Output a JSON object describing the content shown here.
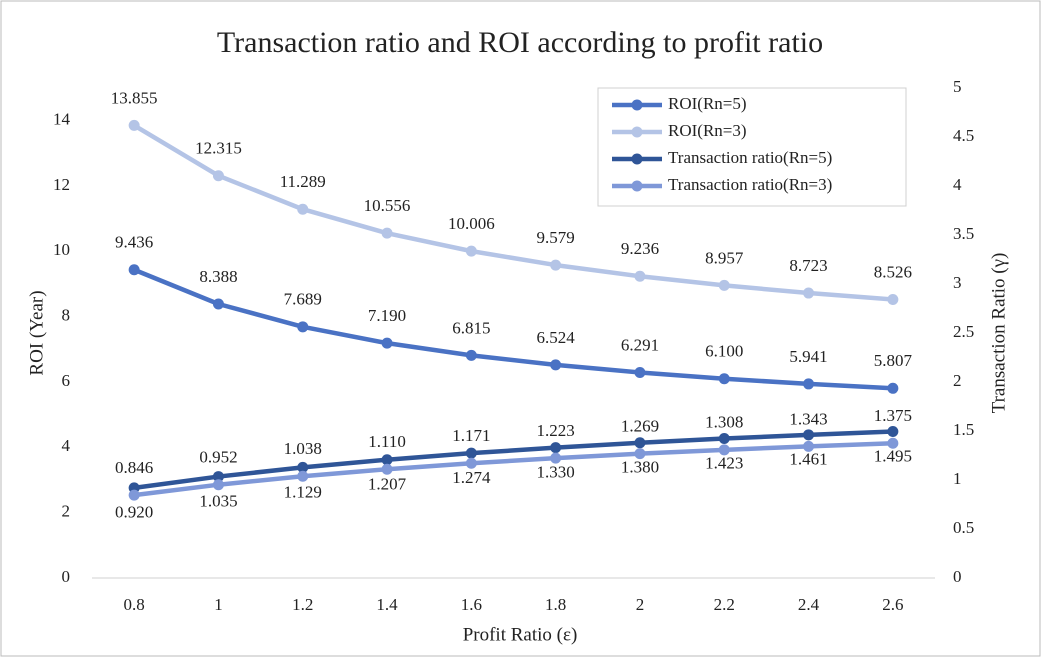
{
  "chart_data": {
    "type": "line",
    "title": "Transaction ratio and ROI according to profit ratio",
    "x_label": "Profit Ratio (ε)",
    "y_label": "ROI (Year)",
    "y2_label": "Transaction Ratio (γ)",
    "categories": [
      "0.8",
      "1",
      "1.2",
      "1.4",
      "1.6",
      "1.8",
      "2",
      "2.2",
      "2.4",
      "2.6"
    ],
    "ylim": [
      0,
      15
    ],
    "yticks": [
      0,
      2,
      4,
      6,
      8,
      10,
      12,
      14
    ],
    "y2lim": [
      0,
      5
    ],
    "y2ticks": [
      0,
      0.5,
      1,
      1.5,
      2,
      2.5,
      3,
      3.5,
      4,
      4.5,
      5
    ],
    "grid": false,
    "legend": "top-right",
    "series": [
      {
        "name": "ROI(Rn=5)",
        "color": "#4a72c4",
        "axis": "y",
        "values": [
          9.436,
          8.388,
          7.689,
          7.19,
          6.815,
          6.524,
          6.291,
          6.1,
          5.941,
          5.807
        ],
        "value_labels": [
          "9.436",
          "8.388",
          "7.689",
          "7.190",
          "6.815",
          "6.524",
          "6.291",
          "6.100",
          "5.941",
          "5.807"
        ]
      },
      {
        "name": "ROI(Rn=3)",
        "color": "#b4c4e6",
        "axis": "y",
        "values": [
          13.855,
          12.315,
          11.289,
          10.556,
          10.006,
          9.579,
          9.236,
          8.957,
          8.723,
          8.526
        ],
        "value_labels": [
          "13.855",
          "12.315",
          "11.289",
          "10.556",
          "10.006",
          "9.579",
          "9.236",
          "8.957",
          "8.723",
          "8.526"
        ]
      },
      {
        "name": "Transaction ratio(Rn=5)",
        "color": "#2f5597",
        "axis": "y2",
        "values": [
          0.92,
          1.035,
          1.129,
          1.207,
          1.274,
          1.33,
          1.38,
          1.423,
          1.461,
          1.495
        ],
        "value_labels": [
          "0.920",
          "1.035",
          "1.129",
          "1.207",
          "1.274",
          "1.330",
          "1.380",
          "1.423",
          "1.461",
          "1.495"
        ]
      },
      {
        "name": "Transaction ratio(Rn=3)",
        "color": "#7f98d8",
        "axis": "y2",
        "values": [
          0.846,
          0.952,
          1.038,
          1.11,
          1.171,
          1.223,
          1.269,
          1.308,
          1.343,
          1.375
        ],
        "value_labels": [
          "0.846",
          "0.952",
          "1.038",
          "1.110",
          "1.171",
          "1.223",
          "1.269",
          "1.308",
          "1.343",
          "1.375"
        ]
      }
    ]
  }
}
